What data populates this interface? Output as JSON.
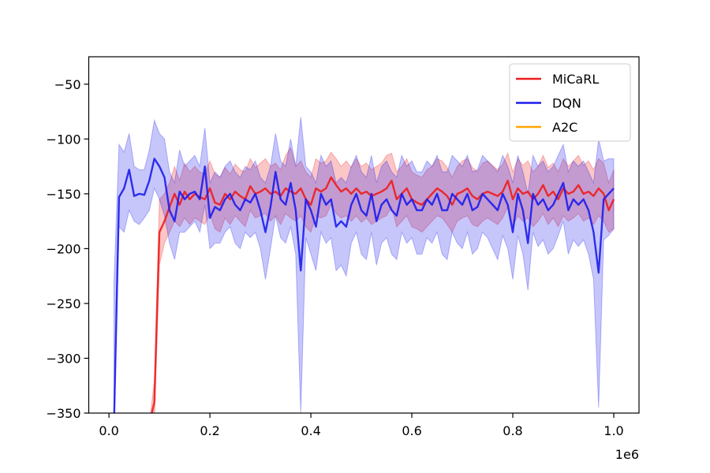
{
  "chart_data": {
    "type": "line",
    "title": "",
    "xlabel": "",
    "ylabel": "",
    "x_offset_label": "1e6",
    "xlim": [
      -0.04,
      1.05
    ],
    "ylim": [
      -350,
      -25
    ],
    "x_ticks": [
      0.0,
      0.2,
      0.4,
      0.6,
      0.8,
      1.0
    ],
    "x_tick_labels": [
      "0.0",
      "0.2",
      "0.4",
      "0.6",
      "0.8",
      "1.0"
    ],
    "y_ticks": [
      -350,
      -300,
      -250,
      -200,
      -150,
      -100,
      -50
    ],
    "y_tick_labels": [
      "−350",
      "−300",
      "−250",
      "−200",
      "−150",
      "−100",
      "−50"
    ],
    "grid": false,
    "legend_position": "top-right",
    "series": [
      {
        "name": "MiCaRL",
        "color": "#ee1c1c",
        "x": [
          0.08,
          0.09,
          0.1,
          0.11,
          0.12,
          0.13,
          0.14,
          0.15,
          0.16,
          0.17,
          0.18,
          0.19,
          0.2,
          0.21,
          0.22,
          0.23,
          0.24,
          0.25,
          0.26,
          0.27,
          0.28,
          0.29,
          0.3,
          0.31,
          0.32,
          0.33,
          0.34,
          0.35,
          0.36,
          0.37,
          0.38,
          0.39,
          0.4,
          0.41,
          0.42,
          0.43,
          0.44,
          0.45,
          0.46,
          0.47,
          0.48,
          0.49,
          0.5,
          0.51,
          0.52,
          0.53,
          0.54,
          0.55,
          0.56,
          0.57,
          0.58,
          0.59,
          0.6,
          0.61,
          0.62,
          0.63,
          0.64,
          0.65,
          0.66,
          0.67,
          0.68,
          0.69,
          0.7,
          0.71,
          0.72,
          0.73,
          0.74,
          0.75,
          0.76,
          0.77,
          0.78,
          0.79,
          0.8,
          0.81,
          0.82,
          0.83,
          0.84,
          0.85,
          0.86,
          0.87,
          0.88,
          0.89,
          0.9,
          0.91,
          0.92,
          0.93,
          0.94,
          0.95,
          0.96,
          0.97,
          0.98,
          0.99,
          1.0
        ],
        "values": [
          -360,
          -340,
          -185,
          -175,
          -162,
          -150,
          -160,
          -148,
          -155,
          -150,
          -153,
          -155,
          -145,
          -158,
          -160,
          -150,
          -155,
          -148,
          -152,
          -155,
          -143,
          -150,
          -148,
          -145,
          -150,
          -148,
          -152,
          -145,
          -148,
          -150,
          -145,
          -155,
          -160,
          -145,
          -148,
          -145,
          -135,
          -142,
          -148,
          -145,
          -150,
          -145,
          -150,
          -148,
          -152,
          -150,
          -148,
          -145,
          -138,
          -155,
          -150,
          -145,
          -155,
          -158,
          -160,
          -155,
          -150,
          -145,
          -148,
          -152,
          -160,
          -150,
          -148,
          -145,
          -152,
          -155,
          -150,
          -148,
          -150,
          -152,
          -148,
          -138,
          -155,
          -145,
          -150,
          -148,
          -155,
          -150,
          -142,
          -152,
          -148,
          -155,
          -145,
          -150,
          -148,
          -142,
          -150,
          -148,
          -152,
          -145,
          -150,
          -165,
          -155
        ],
        "band_lower": [
          -360,
          -360,
          -215,
          -195,
          -185,
          -175,
          -180,
          -172,
          -178,
          -172,
          -175,
          -178,
          -168,
          -182,
          -185,
          -172,
          -178,
          -170,
          -175,
          -180,
          -165,
          -172,
          -170,
          -168,
          -175,
          -170,
          -178,
          -168,
          -172,
          -175,
          -170,
          -180,
          -185,
          -170,
          -172,
          -170,
          -160,
          -168,
          -172,
          -170,
          -175,
          -170,
          -176,
          -172,
          -178,
          -175,
          -172,
          -170,
          -162,
          -180,
          -175,
          -170,
          -180,
          -182,
          -185,
          -180,
          -175,
          -170,
          -172,
          -178,
          -185,
          -175,
          -172,
          -170,
          -178,
          -180,
          -175,
          -172,
          -175,
          -178,
          -172,
          -162,
          -180,
          -170,
          -175,
          -172,
          -180,
          -175,
          -168,
          -178,
          -172,
          -180,
          -170,
          -175,
          -172,
          -168,
          -175,
          -172,
          -178,
          -170,
          -175,
          -185,
          -182
        ],
        "band_upper": [
          -360,
          -320,
          -155,
          -150,
          -140,
          -125,
          -138,
          -122,
          -130,
          -125,
          -130,
          -132,
          -120,
          -132,
          -135,
          -126,
          -132,
          -123,
          -128,
          -130,
          -118,
          -126,
          -122,
          -118,
          -125,
          -122,
          -128,
          -115,
          -108,
          -125,
          -120,
          -130,
          -135,
          -118,
          -122,
          -120,
          -112,
          -118,
          -125,
          -120,
          -126,
          -118,
          -125,
          -122,
          -128,
          -125,
          -122,
          -115,
          -113,
          -130,
          -125,
          -118,
          -130,
          -133,
          -135,
          -128,
          -125,
          -118,
          -120,
          -126,
          -135,
          -125,
          -120,
          -118,
          -126,
          -130,
          -122,
          -120,
          -124,
          -128,
          -123,
          -113,
          -130,
          -118,
          -124,
          -120,
          -130,
          -125,
          -115,
          -126,
          -122,
          -130,
          -118,
          -125,
          -120,
          -115,
          -124,
          -120,
          -128,
          -118,
          -122,
          -140,
          -128
        ]
      },
      {
        "name": "DQN",
        "color": "#1c1cee",
        "x": [
          0.01,
          0.02,
          0.03,
          0.04,
          0.05,
          0.06,
          0.07,
          0.08,
          0.09,
          0.1,
          0.11,
          0.12,
          0.13,
          0.14,
          0.15,
          0.16,
          0.17,
          0.18,
          0.19,
          0.2,
          0.21,
          0.22,
          0.23,
          0.24,
          0.25,
          0.26,
          0.27,
          0.28,
          0.29,
          0.3,
          0.31,
          0.32,
          0.33,
          0.34,
          0.35,
          0.36,
          0.37,
          0.38,
          0.39,
          0.4,
          0.41,
          0.42,
          0.43,
          0.44,
          0.45,
          0.46,
          0.47,
          0.48,
          0.49,
          0.5,
          0.51,
          0.52,
          0.53,
          0.54,
          0.55,
          0.56,
          0.57,
          0.58,
          0.59,
          0.6,
          0.61,
          0.62,
          0.63,
          0.64,
          0.65,
          0.66,
          0.67,
          0.68,
          0.69,
          0.7,
          0.71,
          0.72,
          0.73,
          0.74,
          0.75,
          0.76,
          0.77,
          0.78,
          0.79,
          0.8,
          0.81,
          0.82,
          0.83,
          0.84,
          0.85,
          0.86,
          0.87,
          0.88,
          0.89,
          0.9,
          0.91,
          0.92,
          0.93,
          0.94,
          0.95,
          0.96,
          0.97,
          0.98,
          0.99,
          1.0
        ],
        "values": [
          -360,
          -153,
          -145,
          -128,
          -152,
          -150,
          -151,
          -138,
          -118,
          -125,
          -135,
          -165,
          -175,
          -148,
          -155,
          -150,
          -148,
          -155,
          -125,
          -172,
          -162,
          -165,
          -155,
          -150,
          -160,
          -165,
          -155,
          -158,
          -150,
          -165,
          -185,
          -162,
          -130,
          -155,
          -160,
          -140,
          -165,
          -220,
          -155,
          -165,
          -180,
          -150,
          -160,
          -155,
          -180,
          -175,
          -180,
          -160,
          -150,
          -165,
          -170,
          -150,
          -175,
          -160,
          -155,
          -165,
          -170,
          -150,
          -160,
          -155,
          -165,
          -165,
          -155,
          -160,
          -150,
          -165,
          -165,
          -150,
          -155,
          -160,
          -150,
          -165,
          -162,
          -150,
          -155,
          -160,
          -165,
          -150,
          -160,
          -185,
          -150,
          -165,
          -195,
          -150,
          -160,
          -155,
          -165,
          -160,
          -150,
          -140,
          -165,
          -155,
          -160,
          -155,
          -165,
          -185,
          -222,
          -155,
          -150,
          -145
        ],
        "band_lower": [
          -360,
          -180,
          -185,
          -165,
          -175,
          -178,
          -172,
          -165,
          -145,
          -155,
          -170,
          -195,
          -210,
          -185,
          -185,
          -180,
          -175,
          -185,
          -160,
          -200,
          -195,
          -195,
          -185,
          -180,
          -195,
          -200,
          -185,
          -190,
          -185,
          -200,
          -228,
          -200,
          -170,
          -190,
          -195,
          -180,
          -205,
          -350,
          -190,
          -205,
          -220,
          -185,
          -195,
          -190,
          -220,
          -215,
          -225,
          -195,
          -185,
          -205,
          -210,
          -185,
          -215,
          -195,
          -190,
          -205,
          -210,
          -185,
          -195,
          -190,
          -205,
          -205,
          -190,
          -195,
          -185,
          -205,
          -210,
          -185,
          -195,
          -200,
          -185,
          -205,
          -200,
          -185,
          -190,
          -200,
          -210,
          -188,
          -200,
          -228,
          -188,
          -205,
          -238,
          -185,
          -198,
          -192,
          -205,
          -200,
          -188,
          -175,
          -205,
          -192,
          -198,
          -192,
          -205,
          -228,
          -345,
          -192,
          -188,
          -182
        ],
        "band_upper": [
          -230,
          -105,
          -112,
          -95,
          -125,
          -128,
          -128,
          -110,
          -83,
          -95,
          -100,
          -130,
          -140,
          -110,
          -125,
          -120,
          -115,
          -125,
          -90,
          -140,
          -130,
          -135,
          -125,
          -120,
          -130,
          -135,
          -125,
          -128,
          -120,
          -135,
          -140,
          -125,
          -95,
          -120,
          -125,
          -100,
          -125,
          -80,
          -125,
          -130,
          -140,
          -115,
          -125,
          -120,
          -140,
          -135,
          -140,
          -125,
          -115,
          -130,
          -135,
          -115,
          -140,
          -125,
          -120,
          -130,
          -135,
          -115,
          -125,
          -120,
          -130,
          -130,
          -120,
          -125,
          -115,
          -130,
          -130,
          -115,
          -120,
          -125,
          -115,
          -130,
          -128,
          -115,
          -120,
          -125,
          -130,
          -115,
          -125,
          -140,
          -115,
          -130,
          -150,
          -115,
          -125,
          -120,
          -130,
          -125,
          -115,
          -105,
          -130,
          -120,
          -125,
          -120,
          -130,
          -140,
          -100,
          -120,
          -118,
          -118
        ]
      },
      {
        "name": "A2C",
        "color": "#ffa500",
        "x": [],
        "values": []
      }
    ]
  }
}
